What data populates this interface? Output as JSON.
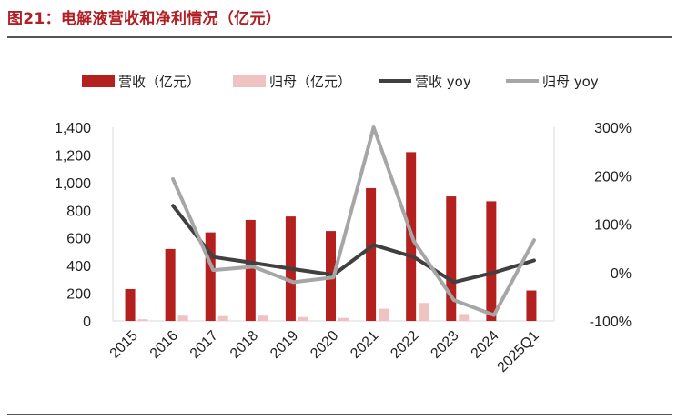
{
  "title": "图21：电解液营收和净利情况（亿元）",
  "colors": {
    "accent": "#b11e23",
    "revenue_bar": "#b3201e",
    "profit_bar": "#efc3c2",
    "revenue_yoy_line": "#404040",
    "profit_yoy_line": "#a6a6a6",
    "rule": "#555555"
  },
  "chart_data": {
    "type": "bar",
    "categories": [
      "2015",
      "2016",
      "2017",
      "2018",
      "2019",
      "2020",
      "2021",
      "2022",
      "2023",
      "2024",
      "2025Q1"
    ],
    "left_axis": {
      "range": [
        0,
        1400
      ],
      "ticks": [
        "0",
        "200",
        "400",
        "600",
        "800",
        "1,000",
        "1,200",
        "1,400"
      ],
      "tick_values": [
        0,
        200,
        400,
        600,
        800,
        1000,
        1200,
        1400
      ]
    },
    "right_axis": {
      "range": [
        -100,
        300
      ],
      "ticks": [
        "-100%",
        "0%",
        "100%",
        "200%",
        "300%"
      ],
      "tick_values": [
        -100,
        0,
        100,
        200,
        300
      ]
    },
    "legend_position": "top",
    "grid": false,
    "series": [
      {
        "name": "营收（亿元）",
        "type": "bar",
        "axis": "left",
        "color": "#b3201e",
        "values": [
          230,
          520,
          640,
          730,
          755,
          650,
          960,
          1220,
          900,
          865,
          220
        ]
      },
      {
        "name": "归母（亿元）",
        "type": "bar",
        "axis": "left",
        "color": "#efc3c2",
        "values": [
          12,
          38,
          35,
          38,
          28,
          22,
          88,
          130,
          50,
          null,
          null
        ]
      },
      {
        "name": "营收 yoy",
        "type": "line",
        "axis": "right",
        "color": "#404040",
        "values": [
          null,
          138,
          32,
          20,
          7,
          -5,
          57,
          32,
          -20,
          0,
          25
        ]
      },
      {
        "name": "归母 yoy",
        "type": "line",
        "axis": "right",
        "color": "#a6a6a6",
        "values": [
          null,
          193,
          5,
          12,
          -20,
          -10,
          300,
          65,
          -57,
          -88,
          67
        ]
      }
    ]
  }
}
